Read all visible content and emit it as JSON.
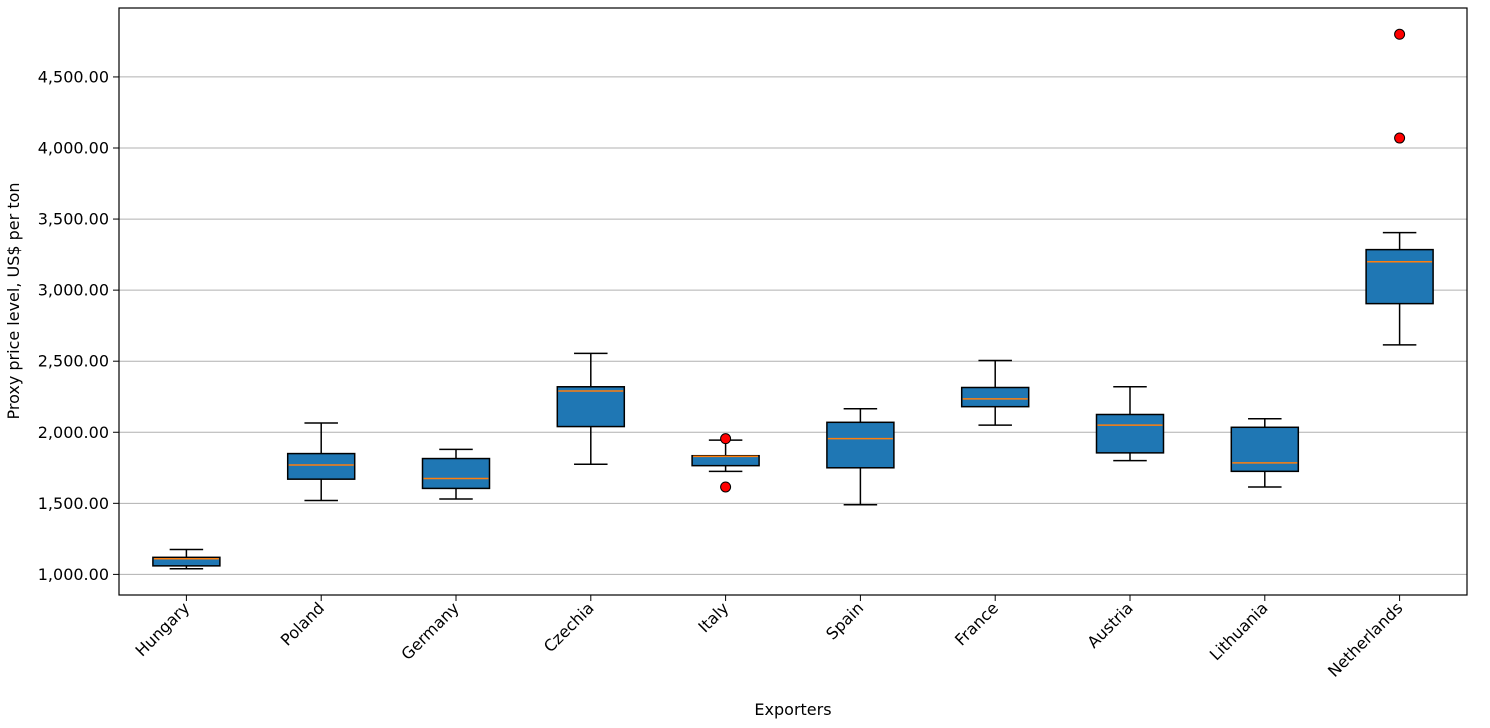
{
  "chart_data": {
    "type": "boxplot",
    "xlabel": "Exporters",
    "ylabel": "Proxy price level, US$ per ton",
    "ylim": [
      855,
      4985
    ],
    "yticks": [
      1000,
      1500,
      2000,
      2500,
      3000,
      3500,
      4000,
      4500
    ],
    "ytick_labels": [
      "1,000.00",
      "1,500.00",
      "2,000.00",
      "2,500.00",
      "3,000.00",
      "3,500.00",
      "4,000.00",
      "4,500.00"
    ],
    "grid": "horizontal",
    "colors": {
      "box": "#1f77b4",
      "median": "#ff7f0e",
      "outlier": "#ff0000",
      "grid": "#b0b0b0"
    },
    "categories": [
      "Hungary",
      "Poland",
      "Germany",
      "Czechia",
      "Italy",
      "Spain",
      "France",
      "Austria",
      "Lithuania",
      "Netherlands"
    ],
    "boxes": [
      {
        "name": "Hungary",
        "whislo": 1040,
        "q1": 1060,
        "med": 1110,
        "q3": 1120,
        "whishi": 1175,
        "fliers": []
      },
      {
        "name": "Poland",
        "whislo": 1520,
        "q1": 1670,
        "med": 1770,
        "q3": 1850,
        "whishi": 2065,
        "fliers": []
      },
      {
        "name": "Germany",
        "whislo": 1530,
        "q1": 1605,
        "med": 1675,
        "q3": 1815,
        "whishi": 1880,
        "fliers": []
      },
      {
        "name": "Czechia",
        "whislo": 1775,
        "q1": 2040,
        "med": 2290,
        "q3": 2320,
        "whishi": 2555,
        "fliers": []
      },
      {
        "name": "Italy",
        "whislo": 1725,
        "q1": 1765,
        "med": 1830,
        "q3": 1835,
        "whishi": 1945,
        "fliers": [
          1955,
          1615
        ]
      },
      {
        "name": "Spain",
        "whislo": 1490,
        "q1": 1750,
        "med": 1955,
        "q3": 2070,
        "whishi": 2165,
        "fliers": []
      },
      {
        "name": "France",
        "whislo": 2050,
        "q1": 2180,
        "med": 2235,
        "q3": 2315,
        "whishi": 2505,
        "fliers": []
      },
      {
        "name": "Austria",
        "whislo": 1800,
        "q1": 1855,
        "med": 2050,
        "q3": 2125,
        "whishi": 2320,
        "fliers": []
      },
      {
        "name": "Lithuania",
        "whislo": 1615,
        "q1": 1725,
        "med": 1785,
        "q3": 2035,
        "whishi": 2095,
        "fliers": []
      },
      {
        "name": "Netherlands",
        "whislo": 2615,
        "q1": 2905,
        "med": 3200,
        "q3": 3285,
        "whishi": 3405,
        "fliers": [
          4070,
          4800
        ]
      }
    ]
  }
}
